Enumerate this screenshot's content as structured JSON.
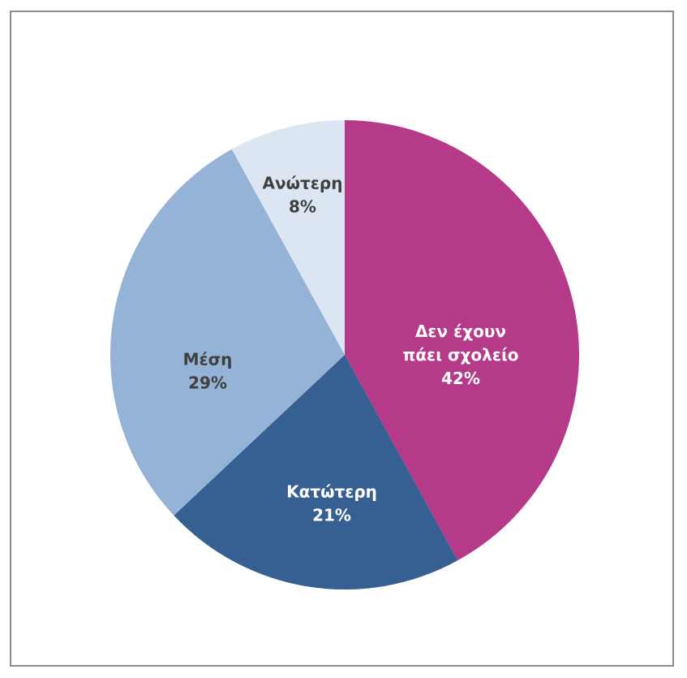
{
  "chart_data": {
    "type": "pie",
    "title": "",
    "slices": [
      {
        "label_lines": [
          "Δεν έχουν",
          "πάει σχολείο"
        ],
        "value": 42,
        "percent_label": "42%",
        "color": "#b53a89",
        "label_color": "#ffffff"
      },
      {
        "label_lines": [
          "Κατώτερη"
        ],
        "value": 21,
        "percent_label": "21%",
        "color": "#376092",
        "label_color": "#ffffff"
      },
      {
        "label_lines": [
          "Μέση"
        ],
        "value": 29,
        "percent_label": "29%",
        "color": "#95b3d7",
        "label_color": "#404040"
      },
      {
        "label_lines": [
          "Ανώτερη"
        ],
        "value": 8,
        "percent_label": "8%",
        "color": "#dce6f2",
        "label_color": "#404040"
      }
    ],
    "start_angle_deg": 0,
    "direction": "clockwise",
    "legend": "none"
  }
}
